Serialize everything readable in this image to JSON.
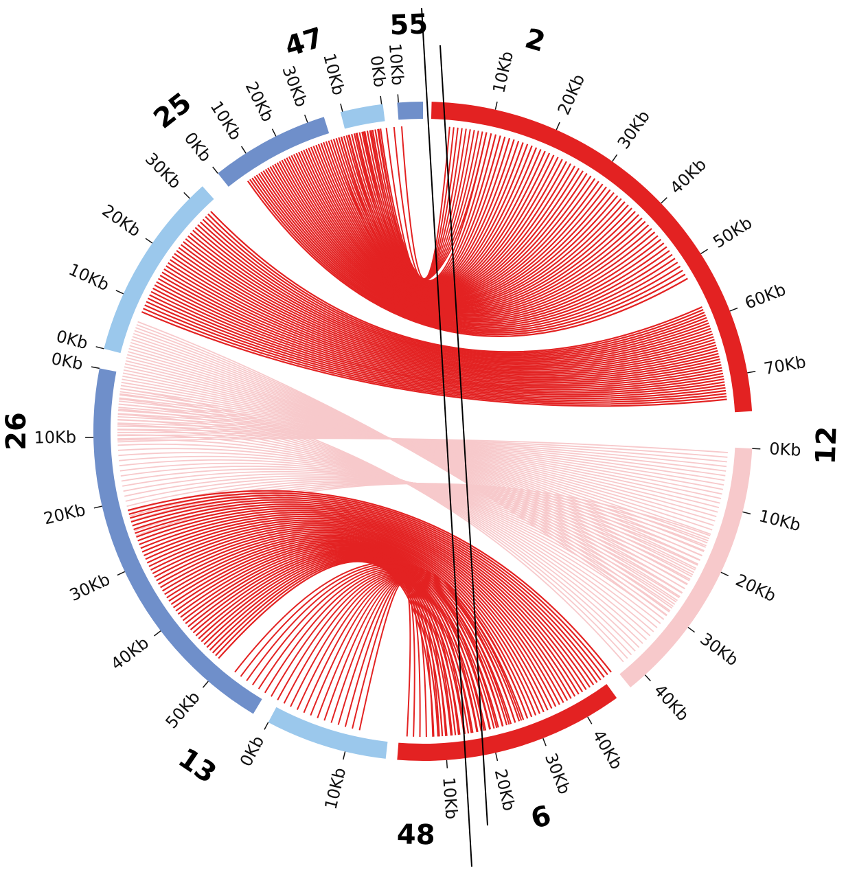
{
  "chart_data": {
    "type": "chord",
    "segments": [
      {
        "name": "2",
        "length_kb": 76,
        "color": "#e32222",
        "start_deg": 1.5,
        "end_deg": 87.0,
        "ticks": [
          "10Kb",
          "20Kb",
          "30Kb",
          "40Kb",
          "50Kb",
          "60Kb",
          "70Kb"
        ]
      },
      {
        "name": "12",
        "length_kb": 43,
        "color": "#f7c9cb",
        "start_deg": 93.0,
        "end_deg": 141.5,
        "ticks": [
          "0Kb",
          "10Kb",
          "20Kb",
          "30Kb",
          "40Kb"
        ]
      },
      {
        "name": "6",
        "length_kb": 47,
        "color": "#e32222",
        "start_deg": 144.5,
        "end_deg": 196.0,
        "ticks": [
          "10Kb",
          "20Kb",
          "30Kb",
          "40Kb"
        ]
      },
      {
        "name": "48",
        "length_kb": 15,
        "color": "#9bc8ec",
        "start_deg": 184.0,
        "end_deg": 210.5,
        "ticks": [
          "0Kb",
          "10Kb"
        ]
      },
      {
        "name": "13",
        "length_kb": 58,
        "color": "#6f8fca",
        "start_deg": 213.0,
        "end_deg": 281.0,
        "ticks": [
          "0Kb",
          "10Kb",
          "20Kb",
          "30Kb",
          "40Kb",
          "50Kb"
        ]
      },
      {
        "name": "26",
        "length_kb": 33,
        "color": "#9bc8ec",
        "start_deg": 284.0,
        "end_deg": 319.0,
        "ticks": [
          "0Kb",
          "10Kb",
          "20Kb",
          "30Kb"
        ]
      },
      {
        "name": "25",
        "length_kb": 35,
        "color": "#6f8fca",
        "start_deg": 322.0,
        "end_deg": 352.0,
        "ticks": [
          "0Kb",
          "10Kb",
          "20Kb",
          "30Kb"
        ]
      },
      {
        "name": "47",
        "length_kb": 12,
        "color": "#9bc8ec",
        "start_deg": 354.0,
        "end_deg": 363.5,
        "ticks": [
          "10Kb",
          "0Kb"
        ]
      },
      {
        "name": "55",
        "length_kb": 11,
        "color": "#6f8fca",
        "start_deg": 365.5,
        "end_deg": 359.0,
        "ticks": [
          "10Kb"
        ]
      }
    ],
    "links_color_strong": "#e32222",
    "links_color_light": "#f7c9cb"
  }
}
